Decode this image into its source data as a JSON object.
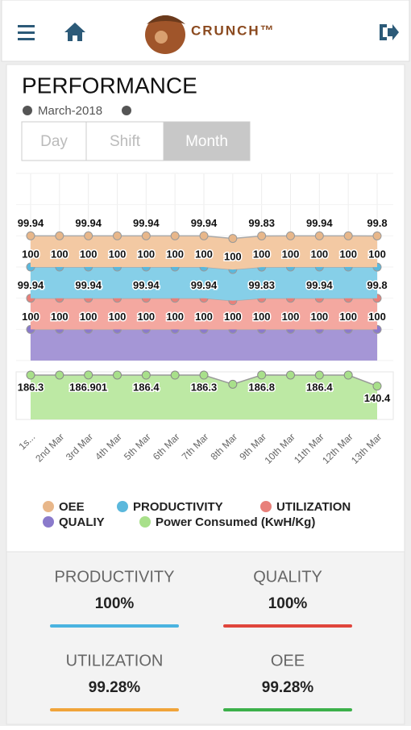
{
  "header": {
    "brand": "CRUNCH™"
  },
  "page": {
    "title": "PERFORMANCE",
    "period": "March-2018",
    "tabs": [
      "Day",
      "Shift",
      "Month"
    ],
    "active_tab": 2
  },
  "chart_data": {
    "type": "area",
    "stacking": "normal",
    "categories": [
      "1s...",
      "2nd Mar",
      "3rd Mar",
      "4th Mar",
      "5th Mar",
      "6th Mar",
      "7th Mar",
      "8th Mar",
      "9th Mar",
      "10th Mar",
      "11th Mar",
      "12th Mar",
      "13th Mar"
    ],
    "ylim": [
      0,
      600
    ],
    "y2lim": [
      0,
      200
    ],
    "grid": true,
    "series": [
      {
        "name": "OEE",
        "color": "#f3c9a3",
        "marker": "#e8b78a",
        "label_every": 2,
        "values": [
          99.94,
          99.94,
          99.94,
          99.94,
          99.94,
          99.94,
          99.94,
          99.6,
          99.83,
          99.94,
          99.94,
          99.94,
          99.8
        ]
      },
      {
        "name": "PRODUCTIVITY",
        "color": "#86cfe8",
        "marker": "#5bb8dc",
        "label_every": 1,
        "values": [
          100,
          100,
          100,
          100,
          100,
          100,
          100,
          100,
          100,
          100,
          100,
          100,
          100
        ]
      },
      {
        "name": "UTILIZATION",
        "color": "#f4a8a0",
        "marker": "#e8807a",
        "label_every": 2,
        "values": [
          99.94,
          99.94,
          99.94,
          99.94,
          99.94,
          99.94,
          99.94,
          92,
          99.83,
          99.94,
          99.94,
          99.94,
          99.8
        ]
      },
      {
        "name": "QUALIY",
        "color": "#a596d6",
        "marker": "#8a7acb",
        "label_every": 1,
        "values": [
          100,
          100,
          100,
          100,
          100,
          100,
          100,
          100,
          100,
          100,
          100,
          100,
          100
        ]
      },
      {
        "name": "Power Consumed (KwH/Kg)",
        "color": "#bde9a4",
        "marker": "#a8e08a",
        "axis": "y2",
        "label_every": 2,
        "values": [
          186.3,
          186.5,
          186.901,
          186.6,
          186.4,
          186.4,
          186.3,
          148,
          186.8,
          186.6,
          186.4,
          186.4,
          140.4
        ]
      }
    ]
  },
  "kpis": [
    {
      "label": "PRODUCTIVITY",
      "value": "100%",
      "color": "#4ab3e0"
    },
    {
      "label": "QUALITY",
      "value": "100%",
      "color": "#e0453c"
    },
    {
      "label": "UTILIZATION",
      "value": "99.28%",
      "color": "#f0a43a"
    },
    {
      "label": "OEE",
      "value": "99.28%",
      "color": "#3cb04a"
    }
  ]
}
